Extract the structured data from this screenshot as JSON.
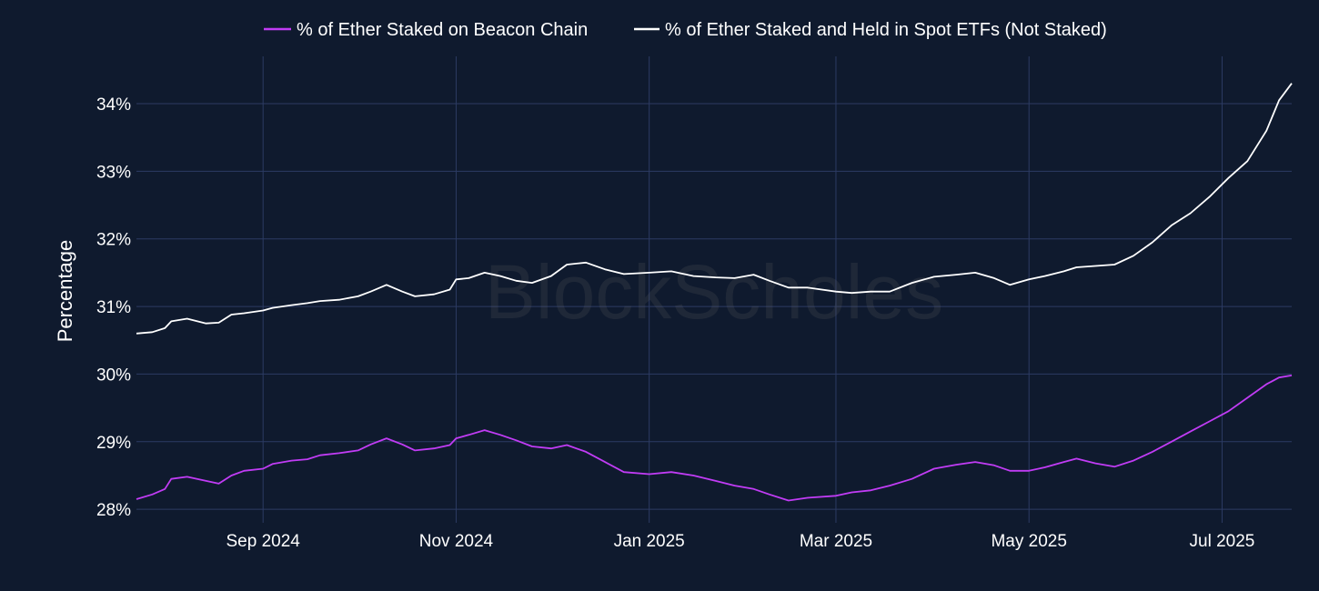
{
  "watermark": "BlockScholes",
  "chart_data": {
    "type": "line",
    "title": "",
    "xlabel": "",
    "ylabel": "Percentage",
    "x_range": [
      "2024-07-23",
      "2025-07-23"
    ],
    "ylim": [
      27.8,
      34.7
    ],
    "y_ticks": [
      28,
      29,
      30,
      31,
      32,
      33,
      34
    ],
    "y_tick_labels": [
      "28%",
      "29%",
      "30%",
      "31%",
      "32%",
      "33%",
      "34%"
    ],
    "x_ticks": [
      "2024-09-01",
      "2024-11-01",
      "2025-01-01",
      "2025-03-01",
      "2025-05-01",
      "2025-07-01"
    ],
    "x_tick_labels": [
      "Sep 2024",
      "Nov 2024",
      "Jan 2025",
      "Mar 2025",
      "May 2025",
      "Jul 2025"
    ],
    "grid": true,
    "legend_position": "top-center",
    "series": [
      {
        "name": "% of Ether Staked on Beacon Chain",
        "color": "#c13cf5",
        "points": [
          [
            "2024-07-23",
            28.15
          ],
          [
            "2024-07-28",
            28.22
          ],
          [
            "2024-08-01",
            28.3
          ],
          [
            "2024-08-03",
            28.45
          ],
          [
            "2024-08-08",
            28.48
          ],
          [
            "2024-08-14",
            28.42
          ],
          [
            "2024-08-18",
            28.38
          ],
          [
            "2024-08-22",
            28.5
          ],
          [
            "2024-08-26",
            28.57
          ],
          [
            "2024-09-01",
            28.6
          ],
          [
            "2024-09-04",
            28.67
          ],
          [
            "2024-09-10",
            28.72
          ],
          [
            "2024-09-15",
            28.74
          ],
          [
            "2024-09-19",
            28.8
          ],
          [
            "2024-09-25",
            28.83
          ],
          [
            "2024-10-01",
            28.87
          ],
          [
            "2024-10-05",
            28.96
          ],
          [
            "2024-10-10",
            29.05
          ],
          [
            "2024-10-15",
            28.96
          ],
          [
            "2024-10-19",
            28.87
          ],
          [
            "2024-10-25",
            28.9
          ],
          [
            "2024-10-30",
            28.95
          ],
          [
            "2024-11-01",
            29.05
          ],
          [
            "2024-11-05",
            29.1
          ],
          [
            "2024-11-10",
            29.17
          ],
          [
            "2024-11-15",
            29.1
          ],
          [
            "2024-11-20",
            29.02
          ],
          [
            "2024-11-25",
            28.93
          ],
          [
            "2024-12-01",
            28.9
          ],
          [
            "2024-12-06",
            28.95
          ],
          [
            "2024-12-12",
            28.85
          ],
          [
            "2024-12-18",
            28.7
          ],
          [
            "2024-12-24",
            28.55
          ],
          [
            "2025-01-01",
            28.52
          ],
          [
            "2025-01-08",
            28.55
          ],
          [
            "2025-01-15",
            28.5
          ],
          [
            "2025-01-22",
            28.42
          ],
          [
            "2025-01-28",
            28.35
          ],
          [
            "2025-02-03",
            28.3
          ],
          [
            "2025-02-08",
            28.22
          ],
          [
            "2025-02-14",
            28.13
          ],
          [
            "2025-02-20",
            28.17
          ],
          [
            "2025-03-01",
            28.2
          ],
          [
            "2025-03-06",
            28.25
          ],
          [
            "2025-03-12",
            28.28
          ],
          [
            "2025-03-18",
            28.35
          ],
          [
            "2025-03-25",
            28.45
          ],
          [
            "2025-04-01",
            28.6
          ],
          [
            "2025-04-08",
            28.66
          ],
          [
            "2025-04-14",
            28.7
          ],
          [
            "2025-04-20",
            28.65
          ],
          [
            "2025-04-25",
            28.57
          ],
          [
            "2025-05-01",
            28.57
          ],
          [
            "2025-05-06",
            28.62
          ],
          [
            "2025-05-12",
            28.7
          ],
          [
            "2025-05-16",
            28.75
          ],
          [
            "2025-05-22",
            28.68
          ],
          [
            "2025-05-28",
            28.63
          ],
          [
            "2025-06-03",
            28.72
          ],
          [
            "2025-06-09",
            28.85
          ],
          [
            "2025-06-15",
            29.0
          ],
          [
            "2025-06-21",
            29.15
          ],
          [
            "2025-06-27",
            29.3
          ],
          [
            "2025-07-03",
            29.45
          ],
          [
            "2025-07-09",
            29.65
          ],
          [
            "2025-07-15",
            29.85
          ],
          [
            "2025-07-19",
            29.95
          ],
          [
            "2025-07-23",
            29.98
          ]
        ]
      },
      {
        "name": "% of Ether Staked and Held in Spot ETFs (Not Staked)",
        "color": "#ffffff",
        "points": [
          [
            "2024-07-23",
            30.6
          ],
          [
            "2024-07-28",
            30.62
          ],
          [
            "2024-08-01",
            30.68
          ],
          [
            "2024-08-03",
            30.78
          ],
          [
            "2024-08-08",
            30.82
          ],
          [
            "2024-08-14",
            30.75
          ],
          [
            "2024-08-18",
            30.76
          ],
          [
            "2024-08-22",
            30.88
          ],
          [
            "2024-08-26",
            30.9
          ],
          [
            "2024-09-01",
            30.94
          ],
          [
            "2024-09-04",
            30.98
          ],
          [
            "2024-09-10",
            31.02
          ],
          [
            "2024-09-15",
            31.05
          ],
          [
            "2024-09-19",
            31.08
          ],
          [
            "2024-09-25",
            31.1
          ],
          [
            "2024-10-01",
            31.15
          ],
          [
            "2024-10-05",
            31.22
          ],
          [
            "2024-10-10",
            31.32
          ],
          [
            "2024-10-15",
            31.22
          ],
          [
            "2024-10-19",
            31.15
          ],
          [
            "2024-10-25",
            31.18
          ],
          [
            "2024-10-30",
            31.25
          ],
          [
            "2024-11-01",
            31.4
          ],
          [
            "2024-11-05",
            31.42
          ],
          [
            "2024-11-10",
            31.5
          ],
          [
            "2024-11-15",
            31.45
          ],
          [
            "2024-11-20",
            31.38
          ],
          [
            "2024-11-25",
            31.35
          ],
          [
            "2024-12-01",
            31.45
          ],
          [
            "2024-12-06",
            31.62
          ],
          [
            "2024-12-12",
            31.65
          ],
          [
            "2024-12-18",
            31.55
          ],
          [
            "2024-12-24",
            31.48
          ],
          [
            "2025-01-01",
            31.5
          ],
          [
            "2025-01-08",
            31.52
          ],
          [
            "2025-01-15",
            31.45
          ],
          [
            "2025-01-22",
            31.43
          ],
          [
            "2025-01-28",
            31.42
          ],
          [
            "2025-02-03",
            31.47
          ],
          [
            "2025-02-08",
            31.38
          ],
          [
            "2025-02-14",
            31.28
          ],
          [
            "2025-02-20",
            31.28
          ],
          [
            "2025-03-01",
            31.22
          ],
          [
            "2025-03-06",
            31.2
          ],
          [
            "2025-03-12",
            31.22
          ],
          [
            "2025-03-18",
            31.22
          ],
          [
            "2025-03-25",
            31.35
          ],
          [
            "2025-04-01",
            31.44
          ],
          [
            "2025-04-08",
            31.47
          ],
          [
            "2025-04-14",
            31.5
          ],
          [
            "2025-04-20",
            31.42
          ],
          [
            "2025-04-25",
            31.32
          ],
          [
            "2025-05-01",
            31.4
          ],
          [
            "2025-05-06",
            31.45
          ],
          [
            "2025-05-12",
            31.52
          ],
          [
            "2025-05-16",
            31.58
          ],
          [
            "2025-05-22",
            31.6
          ],
          [
            "2025-05-28",
            31.62
          ],
          [
            "2025-06-03",
            31.75
          ],
          [
            "2025-06-09",
            31.95
          ],
          [
            "2025-06-15",
            32.2
          ],
          [
            "2025-06-21",
            32.38
          ],
          [
            "2025-06-27",
            32.62
          ],
          [
            "2025-07-03",
            32.9
          ],
          [
            "2025-07-09",
            33.15
          ],
          [
            "2025-07-15",
            33.6
          ],
          [
            "2025-07-19",
            34.05
          ],
          [
            "2025-07-23",
            34.3
          ]
        ]
      }
    ]
  }
}
